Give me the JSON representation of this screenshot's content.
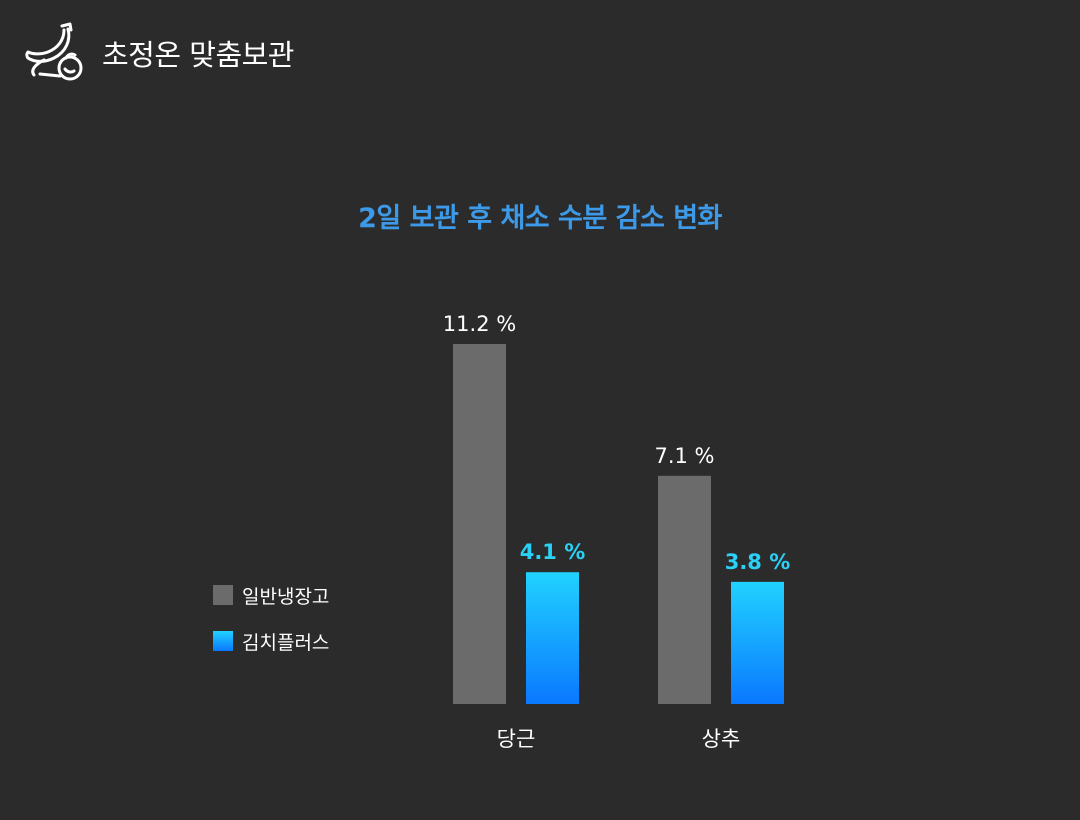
{
  "header": {
    "title": "초정온 맞춤보관",
    "icon": "banana-eggplant-icon"
  },
  "colors": {
    "background": "#2b2b2b",
    "title": "#3d9ae8",
    "series_gray": "#6b6b6b",
    "series_blue_top": "#21d2ff",
    "series_blue_bottom": "#0a78ff",
    "blue_label": "#2ad0f5",
    "text": "#ffffff"
  },
  "chart_data": {
    "type": "bar",
    "title": "2일 보관 후 채소 수분 감소 변화",
    "xlabel": "",
    "ylabel": "",
    "categories": [
      "당근",
      "상추"
    ],
    "series": [
      {
        "name": "일반냉장고",
        "values": [
          11.2,
          7.1
        ],
        "labels": [
          "11.2 %",
          "7.1 %"
        ]
      },
      {
        "name": "김치플러스",
        "values": [
          4.1,
          3.8
        ],
        "labels": [
          "4.1 %",
          "3.8 %"
        ]
      }
    ],
    "ylim": [
      0,
      11.2
    ],
    "grid": false,
    "legend": "left"
  }
}
